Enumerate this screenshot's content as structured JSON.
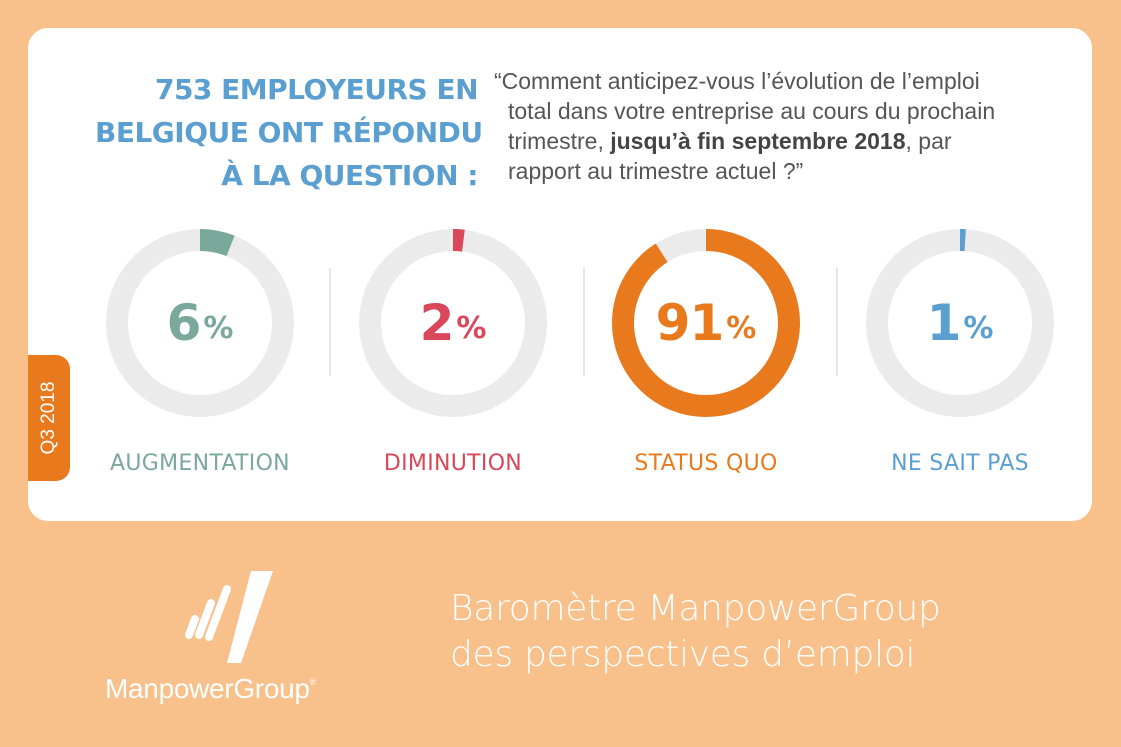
{
  "header": {
    "headline_lines": [
      "753 EMPLOYEURS EN",
      "BELGIQUE ONT RÉPONDU",
      "À LA QUESTION :"
    ],
    "question_lines": [
      {
        "before": "“Comment anticipez-vous l’évolution de l’emploi",
        "bold": "",
        "after": ""
      },
      {
        "before": "total dans votre entreprise au cours du prochain",
        "bold": "",
        "after": ""
      },
      {
        "before": "trimestre, ",
        "bold": "jusqu’à fin septembre 2018",
        "after": ", par"
      },
      {
        "before": "rapport au trimestre actuel ?”",
        "bold": "",
        "after": ""
      }
    ]
  },
  "period_tab": "Q3 2018",
  "chart_data": {
    "type": "pie",
    "unit": "%",
    "categories": [
      "AUGMENTATION",
      "DIMINUTION",
      "STATUS QUO",
      "NE SAIT PAS"
    ],
    "values": [
      6,
      2,
      91,
      1
    ],
    "value_labels": [
      "6",
      "2",
      "91",
      "1"
    ],
    "colors": [
      "#7aa89b",
      "#d9475b",
      "#e8791d",
      "#5b9fd1"
    ],
    "track_color": "#ebebeb"
  },
  "footer": {
    "brand_name": "ManpowerGroup",
    "registered_mark": "®",
    "title_lines": [
      "Baromètre ManpowerGroup",
      "des perspectives d’emploi"
    ]
  }
}
